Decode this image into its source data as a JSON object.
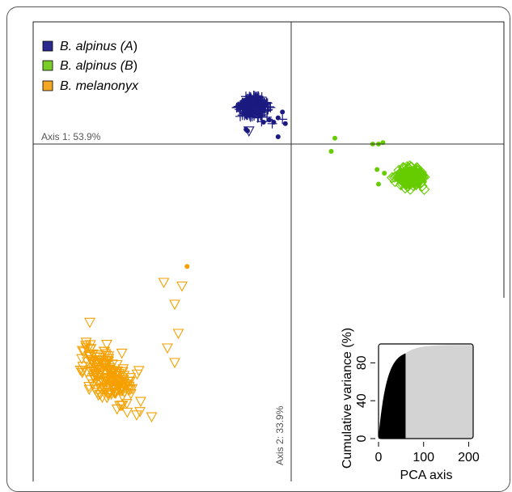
{
  "chart_data": {
    "type": "scatter",
    "axes_labels": {
      "axis1": "Axis 1: 53.9%",
      "axis2": "Axis 2: 33.9%"
    },
    "legend": {
      "position": "top-left",
      "entries": [
        {
          "name_prefix": "B. alpinus (",
          "name_italic": "A",
          "name_suffix": ")",
          "color": "#2b2b8f"
        },
        {
          "name_prefix": "B. alpinus (",
          "name_italic": "B",
          "name_suffix": ")",
          "color": "#7acc29"
        },
        {
          "name_prefix": "B. melanonyx",
          "name_italic": "",
          "name_suffix": "",
          "color": "#f5a623"
        }
      ]
    },
    "series": [
      {
        "name": "B. alpinus (A)",
        "color": "#1a1a80",
        "marker": "plus",
        "cluster": {
          "cx": -52,
          "cy": 52,
          "sx": 14,
          "sy": 10,
          "n": 320
        },
        "extra": [
          [
            -60,
            40
          ],
          [
            -70,
            38
          ],
          [
            -75,
            50
          ],
          [
            -42,
            40
          ],
          [
            -46,
            36
          ],
          [
            -26,
            28
          ],
          [
            -12,
            34
          ]
        ],
        "dots": [
          [
            -60,
            18
          ],
          [
            -62,
            20
          ],
          [
            -45,
            46
          ],
          [
            -24,
            30
          ],
          [
            -18,
            36
          ],
          [
            -30,
            33
          ],
          [
            -12,
            44
          ],
          [
            -8,
            28
          ],
          [
            -18,
            10
          ],
          [
            -38,
            30
          ]
        ],
        "triangles": [
          [
            -58,
            18
          ]
        ]
      },
      {
        "name": "B. alpinus (B)",
        "color": "#66cc00",
        "marker": "diamond",
        "cluster": {
          "cx": 163,
          "cy": -45,
          "sx": 14,
          "sy": 11,
          "n": 220
        },
        "extra": [],
        "dots": [
          [
            60,
            8
          ],
          [
            55,
            -10
          ],
          [
            112,
            0
          ],
          [
            120,
            0
          ],
          [
            126,
            2
          ],
          [
            118,
            -35
          ],
          [
            128,
            -40
          ],
          [
            120,
            -55
          ]
        ],
        "triangles": []
      },
      {
        "name": "B. melanonyx",
        "color": "#f5a000",
        "marker": "triangle",
        "cluster": {
          "cx": -250,
          "cy": -318,
          "sx": 24,
          "sy": 44,
          "rot": 0.62,
          "n": 180
        },
        "extra": [
          [
            -175,
            -190
          ],
          [
            -150,
            -195
          ],
          [
            -160,
            -220
          ],
          [
            -155,
            -260
          ],
          [
            -170,
            -280
          ],
          [
            -160,
            -300
          ]
        ],
        "dots": [
          [
            -143,
            -168
          ]
        ],
        "triangles": []
      }
    ],
    "inset": {
      "type": "area",
      "xlabel": "PCA axis",
      "ylabel": "Cumulative variance (%)",
      "x_ticks": [
        "0",
        "100",
        "200"
      ],
      "y_ticks": [
        "0",
        "40",
        "80"
      ],
      "xlim": [
        0,
        210
      ],
      "ylim": [
        0,
        100
      ],
      "retained_axes": 60,
      "fill_retained": "#000000",
      "fill_rest": "#d3d3d3"
    }
  }
}
